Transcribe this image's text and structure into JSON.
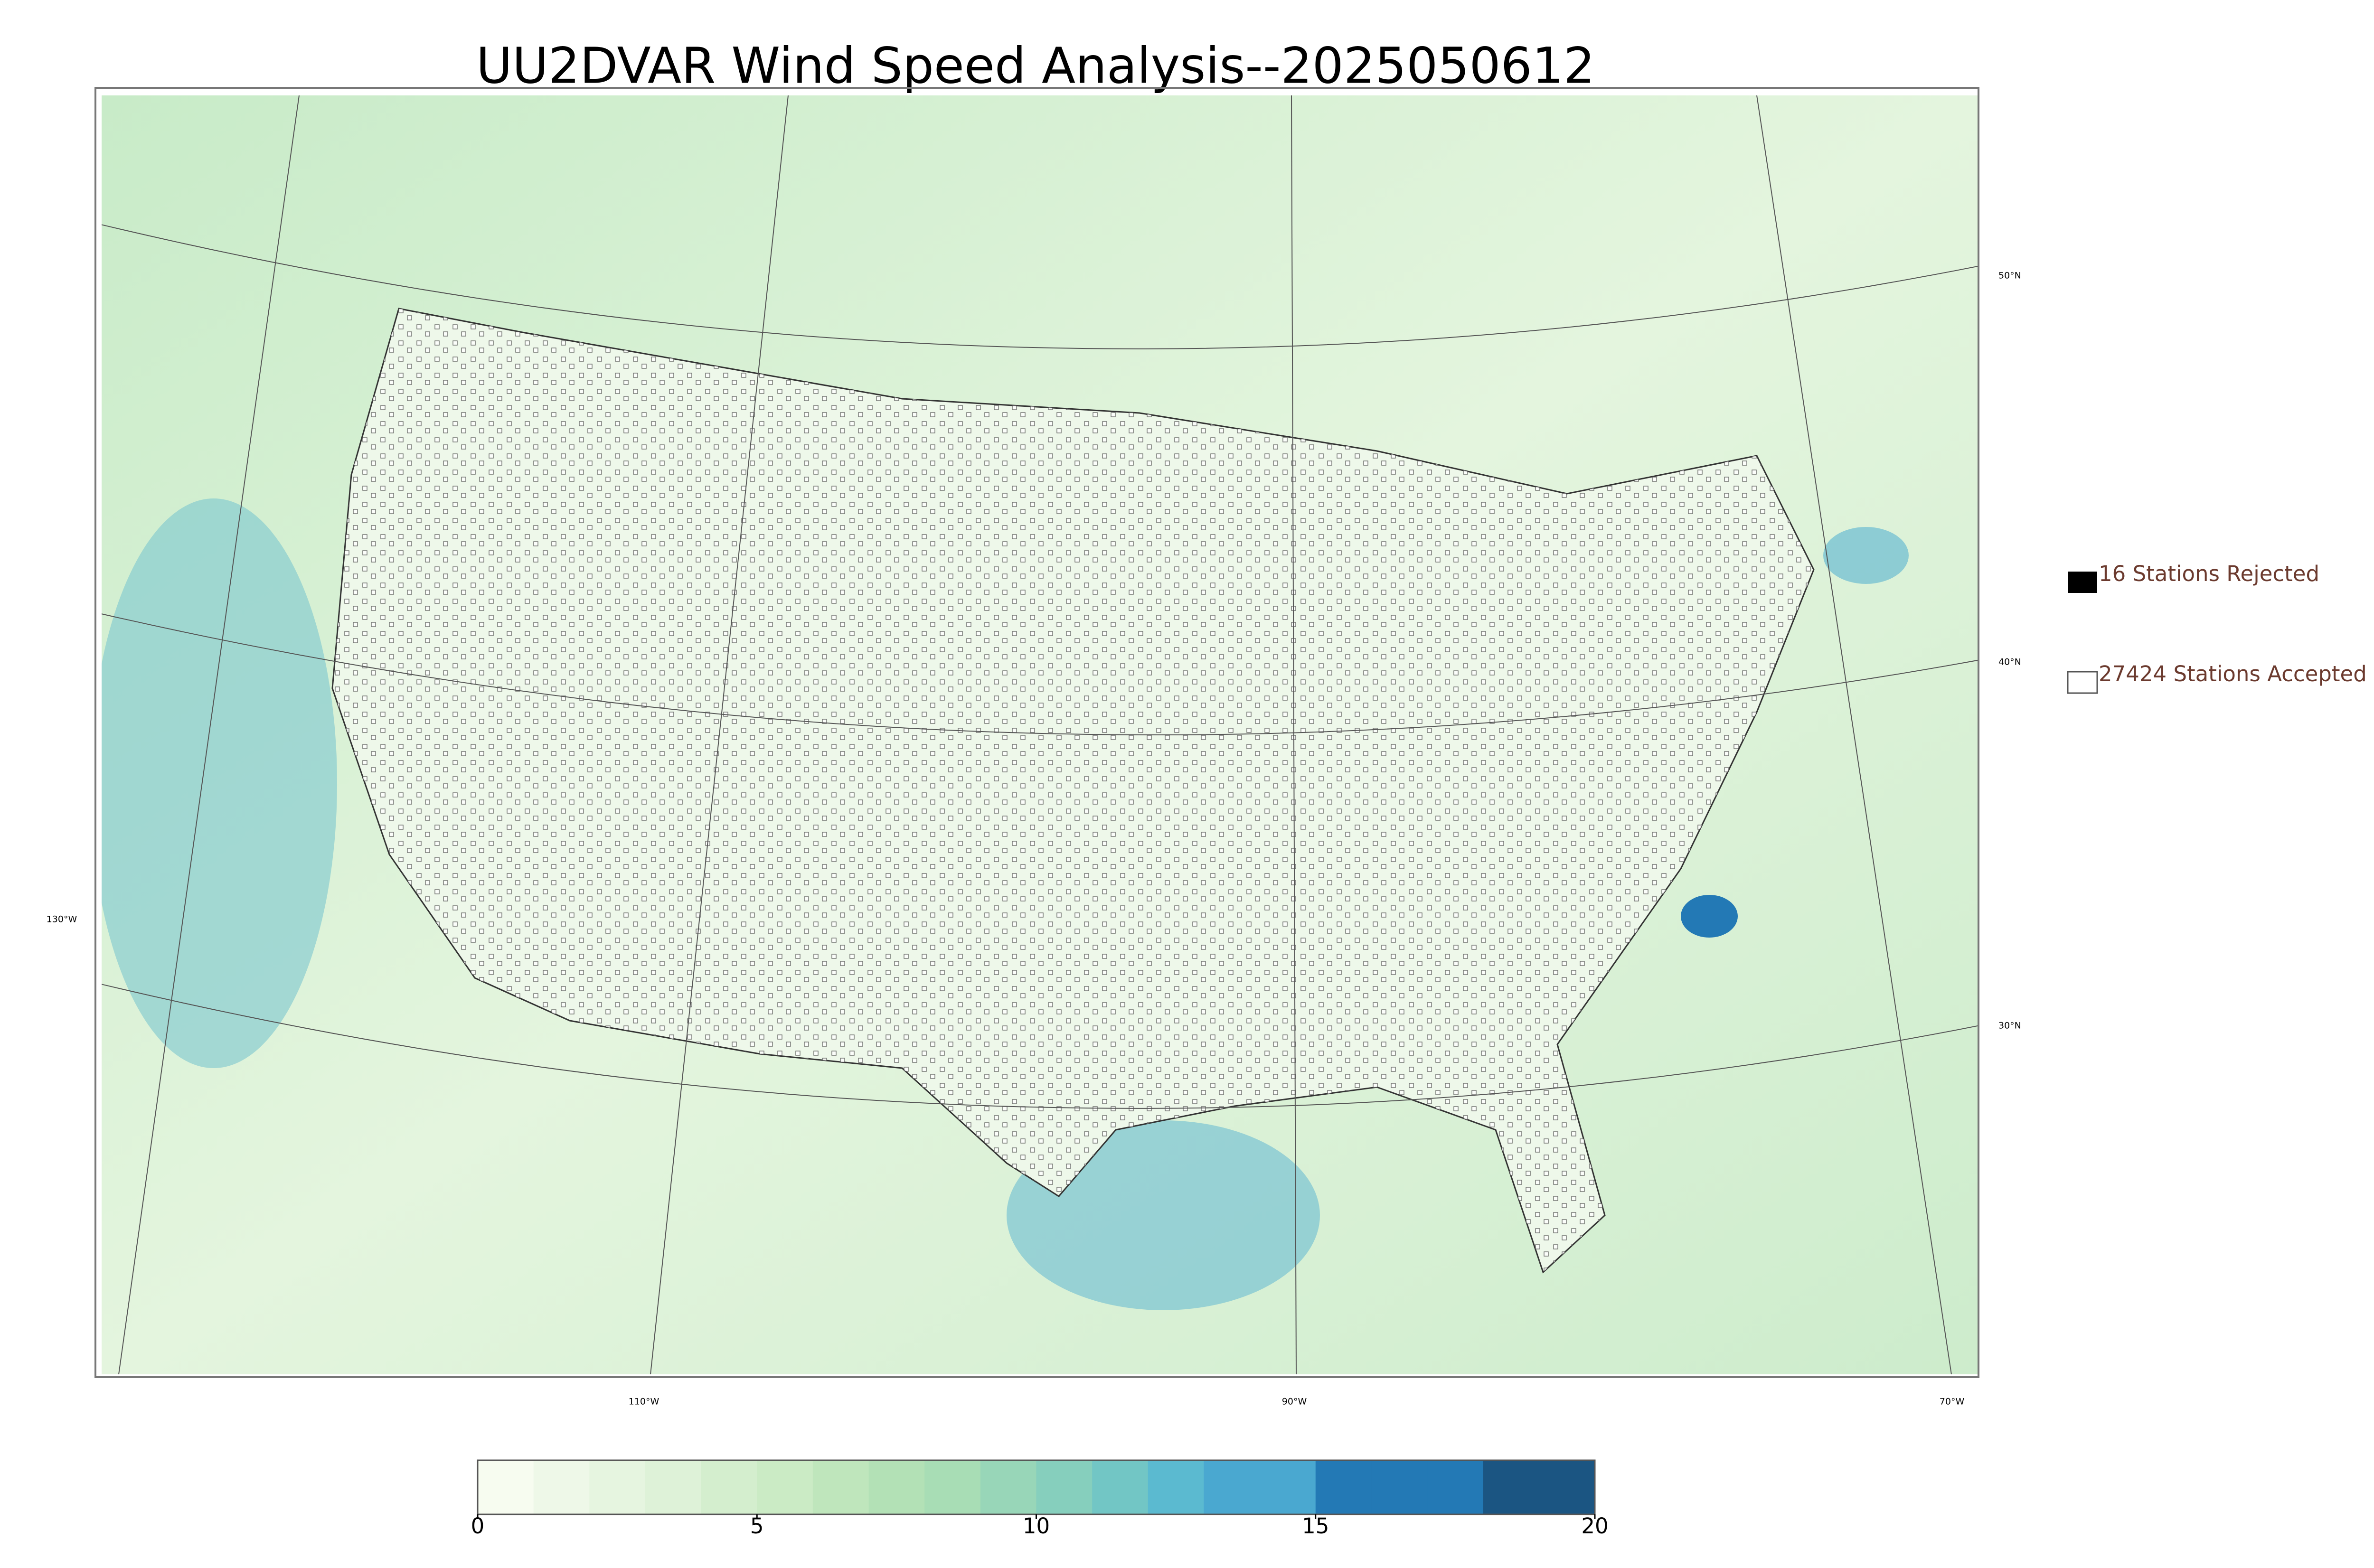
{
  "title": "UU2DVAR Wind Speed Analysis--2025050612",
  "map": {
    "lat_labels": [
      "50°N",
      "40°N",
      "30°N"
    ],
    "lon_labels": [
      "130°W",
      "110°W",
      "90°W",
      "70°W"
    ]
  },
  "legend": {
    "rejected": "16 Stations Rejected",
    "accepted": "27424 Stations Accepted"
  },
  "colorbar": {
    "lim": [
      0,
      20
    ],
    "ticks": [
      0,
      5,
      10,
      15,
      20
    ],
    "colors": [
      "#f7fcf0",
      "#eef8e8",
      "#e6f5e0",
      "#def2d8",
      "#d4eece",
      "#cbebc5",
      "#bfe6bc",
      "#b3e1b6",
      "#a8ddb5",
      "#98d6b8",
      "#86cfbd",
      "#72c6c5",
      "#5bbad0",
      "#4aa8d0",
      "#4aa8d0",
      "#2379b5",
      "#2379b5",
      "#2379b5",
      "#1b5582",
      "#1b5582"
    ]
  }
}
